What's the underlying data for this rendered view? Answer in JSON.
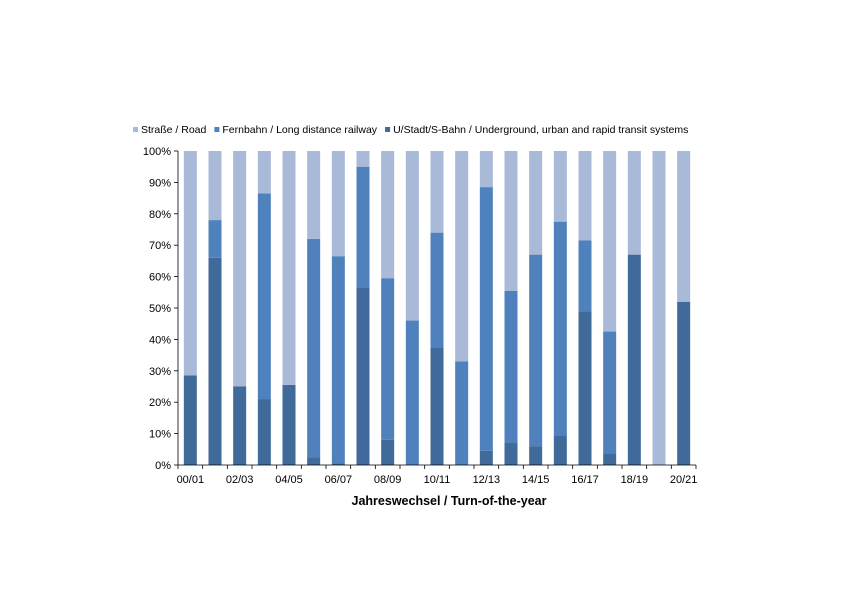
{
  "chart_data": {
    "type": "bar",
    "stacked": true,
    "percent": true,
    "title": "",
    "xlabel": "Jahreswechsel / Turn-of-the-year",
    "ylabel": "",
    "ylim": [
      0,
      100
    ],
    "yticks": [
      "0%",
      "10%",
      "20%",
      "30%",
      "40%",
      "50%",
      "60%",
      "70%",
      "80%",
      "90%",
      "100%"
    ],
    "grid": false,
    "legend_position": "top",
    "categories": [
      "00/01",
      "01/02",
      "02/03",
      "03/04",
      "04/05",
      "05/06",
      "06/07",
      "07/08",
      "08/09",
      "09/10",
      "10/11",
      "11/12",
      "12/13",
      "13/14",
      "14/15",
      "15/16",
      "16/17",
      "17/18",
      "18/19",
      "19/20",
      "20/21"
    ],
    "xtick_labels": [
      "00/01",
      "",
      "02/03",
      "",
      "04/05",
      "",
      "06/07",
      "",
      "08/09",
      "",
      "10/11",
      "",
      "12/13",
      "",
      "14/15",
      "",
      "16/17",
      "",
      "18/19",
      "",
      "20/21"
    ],
    "series": [
      {
        "name": "U/Stadt/S-Bahn / Underground, urban and rapid transit systems",
        "color": "#3f6a99",
        "values": [
          28.5,
          66,
          25,
          21,
          25.5,
          2.5,
          0.5,
          56.5,
          8,
          0,
          37.5,
          0,
          4.5,
          7,
          6,
          9.5,
          49,
          3.5,
          67,
          0,
          52
        ]
      },
      {
        "name": "Fernbahn / Long distance railway",
        "color": "#4f81bd",
        "values": [
          0,
          12,
          0,
          65.5,
          0,
          69.5,
          66,
          38.5,
          51.5,
          46,
          36.5,
          33,
          84,
          48.5,
          61,
          68,
          22.5,
          39,
          0,
          0,
          0
        ]
      },
      {
        "name": "Straße / Road",
        "color": "#a9b9d8",
        "values": [
          71.5,
          22,
          75,
          13.5,
          74.5,
          28,
          33.5,
          5,
          40.5,
          54,
          26,
          67,
          11.5,
          44.5,
          33,
          22.5,
          28.5,
          57.5,
          33,
          100,
          48
        ]
      }
    ],
    "legend_order": [
      2,
      1,
      0
    ]
  }
}
